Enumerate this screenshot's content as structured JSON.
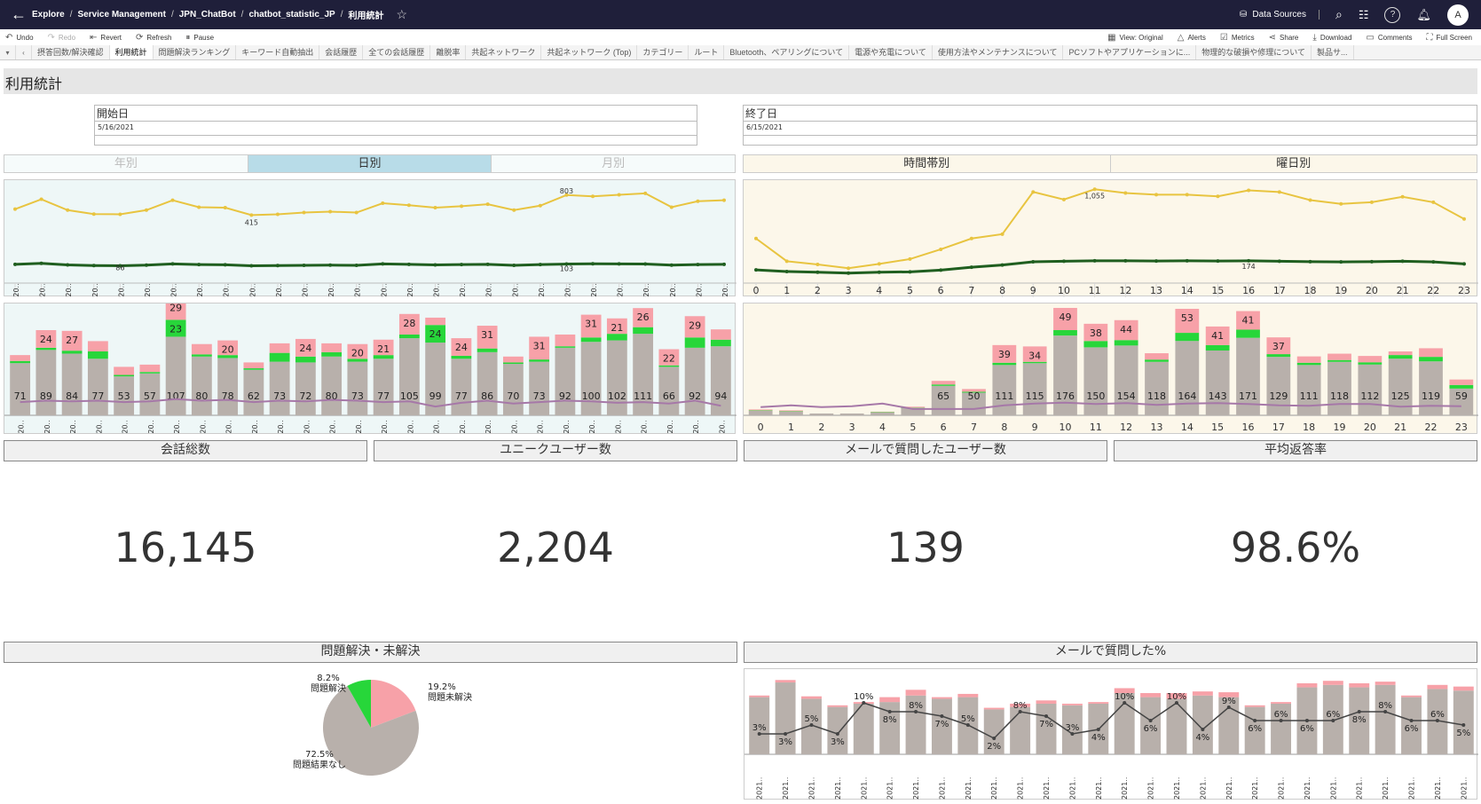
{
  "header": {
    "breadcrumbs": [
      "Explore",
      "Service Management",
      "JPN_ChatBot",
      "chatbot_statistic_JP",
      "利用統計"
    ],
    "data_sources": "Data Sources",
    "avatar": "A"
  },
  "toolbar": {
    "undo": "Undo",
    "redo": "Redo",
    "revert": "Revert",
    "refresh": "Refresh",
    "pause": "Pause",
    "view": "View: Original",
    "alerts": "Alerts",
    "metrics": "Metrics",
    "share": "Share",
    "download": "Download",
    "comments": "Comments",
    "fullscreen": "Full Screen"
  },
  "tabs": [
    "摂答回数/解決確認",
    "利用統計",
    "問題解決ランキング",
    "キーワード自動抽出",
    "会話履歴",
    "全ての会話履歴",
    "離脱率",
    "共起ネットワーク",
    "共起ネットワーク (Top)",
    "カテゴリー",
    "ルート",
    "Bluetooth、ペアリングについて",
    "電源や充電について",
    "使用方法やメンテナンスについて",
    "PCソフトやアプリケーションに...",
    "物理的な破損や修理について",
    "製品サ..."
  ],
  "active_tab_index": 1,
  "dashboard": {
    "title": "利用統計",
    "start_label": "開始日",
    "start_value": "5/16/2021",
    "end_label": "終了日",
    "end_value": "6/15/2021",
    "period_tabs": [
      "年別",
      "日別",
      "月別"
    ],
    "time_tabs": [
      "時間帯別",
      "曜日別"
    ]
  },
  "colors": {
    "yellow_line": "#e8c440",
    "dark_line": "#1f5e1f",
    "pink": "#f7a1a8",
    "green": "#27d63a",
    "gray_bar": "#b8b0ab",
    "purple_line": "#a678a8",
    "left_bg": "#eef7f7",
    "right_bg": "#fcf7ea",
    "active_seg": "#b8dce8"
  },
  "metrics": [
    {
      "label": "会話総数",
      "value": "16,145"
    },
    {
      "label": "ユニークユーザー数",
      "value": "2,204"
    },
    {
      "label": "メールで質問したユーザー数",
      "value": "139"
    },
    {
      "label": "平均返答率",
      "value": "98.6%"
    }
  ],
  "sections": {
    "pie_title": "問題解決・未解決",
    "mail_title": "メールで質問した%"
  },
  "chart_data": [
    {
      "id": "daily_lines",
      "type": "line",
      "x_tick_label": "20..",
      "series": [
        {
          "color": "yellow",
          "values": [
            660,
            760,
            650,
            610,
            608,
            650,
            750,
            680,
            675,
            600,
            608,
            625,
            635,
            625,
            720,
            700,
            675,
            690,
            710,
            650,
            695,
            803,
            790,
            805,
            820,
            680,
            740,
            750
          ]
        },
        {
          "color": "dark",
          "values": [
            100,
            110,
            95,
            88,
            86,
            92,
            105,
            98,
            96,
            85,
            88,
            90,
            92,
            90,
            105,
            100,
            94,
            98,
            100,
            90,
            98,
            103,
            106,
            105,
            103,
            92,
            98,
            100
          ]
        }
      ],
      "annotations": [
        "415",
        "803",
        "86",
        "103"
      ]
    },
    {
      "id": "daily_bars",
      "type": "bar",
      "x_tick_label": "20..",
      "stack": {
        "gray": [
          71,
          89,
          84,
          77,
          53,
          57,
          107,
          80,
          78,
          62,
          73,
          72,
          80,
          73,
          77,
          105,
          99,
          77,
          86,
          70,
          73,
          92,
          100,
          102,
          111,
          66,
          92,
          94
        ],
        "green": [
          3,
          3,
          4,
          10,
          2,
          2,
          23,
          3,
          4,
          2,
          12,
          8,
          6,
          4,
          5,
          5,
          24,
          4,
          5,
          2,
          3,
          2,
          6,
          9,
          9,
          2,
          14,
          9
        ],
        "pink": [
          8,
          24,
          27,
          14,
          11,
          10,
          29,
          14,
          20,
          8,
          13,
          24,
          12,
          20,
          21,
          28,
          10,
          24,
          31,
          8,
          31,
          16,
          31,
          21,
          26,
          22,
          29,
          14
        ]
      },
      "labels": {
        "gray": [
          "71",
          "89",
          "84",
          "77",
          "53",
          "57",
          "107",
          "80",
          "78",
          "62",
          "73",
          "72",
          "80",
          "73",
          "77",
          "105",
          "99",
          "77",
          "86",
          "70",
          "73",
          "92",
          "100",
          "102",
          "111",
          "66",
          "92",
          "94"
        ],
        "pink": [
          "",
          "24",
          "27",
          "",
          "",
          "",
          "29",
          "",
          "20",
          "",
          "",
          "24",
          "",
          "20",
          "21",
          "28",
          "",
          "24",
          "31",
          "",
          "31",
          "",
          "31",
          "21",
          "26",
          "22",
          "29",
          ""
        ],
        "green": [
          "",
          "",
          "",
          "",
          "",
          "",
          "23",
          "",
          "",
          "",
          "",
          "",
          "",
          "",
          "",
          "",
          "24",
          "",
          "",
          "",
          "",
          "",
          "",
          "",
          "",
          "",
          "",
          ""
        ]
      },
      "line": [
        18,
        20,
        19,
        20,
        18,
        19,
        22,
        20,
        21,
        18,
        20,
        19,
        21,
        20,
        18,
        19,
        12,
        17,
        20,
        16,
        18,
        20,
        19,
        17,
        18,
        16,
        20,
        13
      ]
    },
    {
      "id": "hourly_lines",
      "type": "line",
      "x": [
        "0",
        "1",
        "2",
        "3",
        "4",
        "5",
        "6",
        "7",
        "8",
        "9",
        "10",
        "11",
        "12",
        "13",
        "14",
        "15",
        "16",
        "17",
        "18",
        "19",
        "20",
        "21",
        "22",
        "23"
      ],
      "series": [
        {
          "color": "yellow",
          "values": [
            330,
            120,
            90,
            55,
            95,
            140,
            230,
            330,
            370,
            760,
            690,
            785,
            750,
            735,
            735,
            720,
            775,
            760,
            685,
            650,
            665,
            715,
            665,
            510
          ]
        },
        {
          "color": "dark",
          "values": [
            40,
            25,
            18,
            10,
            18,
            22,
            38,
            65,
            85,
            115,
            120,
            124,
            124,
            122,
            124,
            122,
            124,
            120,
            116,
            114,
            116,
            120,
            114,
            95
          ]
        }
      ],
      "annotations": [
        "1,055",
        "174"
      ]
    },
    {
      "id": "hourly_bars",
      "type": "bar",
      "x": [
        "0",
        "1",
        "2",
        "3",
        "4",
        "5",
        "6",
        "7",
        "8",
        "9",
        "10",
        "11",
        "12",
        "13",
        "14",
        "15",
        "16",
        "17",
        "18",
        "19",
        "20",
        "21",
        "22",
        "23"
      ],
      "stack": {
        "gray": [
          10,
          8,
          4,
          4,
          6,
          16,
          65,
          50,
          111,
          115,
          176,
          150,
          154,
          118,
          164,
          143,
          171,
          129,
          111,
          118,
          112,
          125,
          119,
          59
        ],
        "green": [
          1,
          1,
          0,
          0,
          1,
          1,
          3,
          2,
          5,
          3,
          12,
          14,
          12,
          5,
          18,
          12,
          18,
          6,
          5,
          4,
          5,
          8,
          10,
          8
        ],
        "pink": [
          2,
          2,
          0,
          0,
          1,
          2,
          8,
          6,
          39,
          34,
          49,
          38,
          44,
          14,
          53,
          41,
          41,
          37,
          14,
          14,
          14,
          8,
          19,
          12
        ]
      },
      "labels": {
        "gray": [
          "",
          "",
          "",
          "",
          "",
          "",
          "65",
          "50",
          "111",
          "115",
          "176",
          "150",
          "154",
          "118",
          "164",
          "143",
          "171",
          "129",
          "111",
          "118",
          "112",
          "125",
          "119",
          "59"
        ],
        "pink": [
          "",
          "",
          "",
          "",
          "",
          "",
          "",
          "",
          "39",
          "34",
          "49",
          "38",
          "44",
          "",
          "53",
          "41",
          "41",
          "37",
          "",
          "",
          "",
          "",
          "",
          ""
        ]
      },
      "line": [
        18,
        22,
        18,
        20,
        26,
        14,
        14,
        14,
        22,
        26,
        28,
        25,
        27,
        23,
        26,
        27,
        25,
        22,
        21,
        25,
        25,
        19,
        21,
        20
      ]
    },
    {
      "id": "resolution_pie",
      "type": "pie",
      "slices": [
        {
          "label": "問題未解決",
          "pct": "19.2%",
          "value": 19.2,
          "color": "pink"
        },
        {
          "label": "問題結果なし",
          "pct": "72.5%",
          "value": 72.5,
          "color": "gray"
        },
        {
          "label": "問題解決",
          "pct": "8.2%",
          "value": 8.2,
          "color": "green"
        }
      ]
    },
    {
      "id": "mail_pct",
      "type": "bar",
      "x_tick_label": "2021..",
      "bars": [
        70,
        88,
        68,
        58,
        62,
        64,
        72,
        68,
        70,
        55,
        58,
        62,
        60,
        62,
        75,
        70,
        68,
        72,
        70,
        58,
        62,
        82,
        85,
        82,
        85,
        70,
        80,
        78
      ],
      "pink_cap": [
        2,
        3,
        3,
        2,
        2,
        6,
        7,
        2,
        4,
        2,
        4,
        4,
        2,
        2,
        6,
        5,
        7,
        5,
        6,
        2,
        2,
        5,
        5,
        5,
        4,
        2,
        5,
        5
      ],
      "pct": [
        3,
        3,
        5,
        3,
        10,
        8,
        8,
        7,
        5,
        2,
        8,
        7,
        3,
        4,
        10,
        6,
        10,
        4,
        9,
        6,
        6,
        6,
        6,
        8,
        8,
        6,
        6,
        5
      ],
      "labels": [
        "3%",
        "3%",
        "5%",
        "3%",
        "10%",
        "8%",
        "8%",
        "7%",
        "5%",
        "2%",
        "8%",
        "7%",
        "3%",
        "4%",
        "10%",
        "6%",
        "10%",
        "4%",
        "9%",
        "6%",
        "6%",
        "6%",
        "6%",
        "8%",
        "8%",
        "6%",
        "6%",
        "5%"
      ]
    }
  ]
}
